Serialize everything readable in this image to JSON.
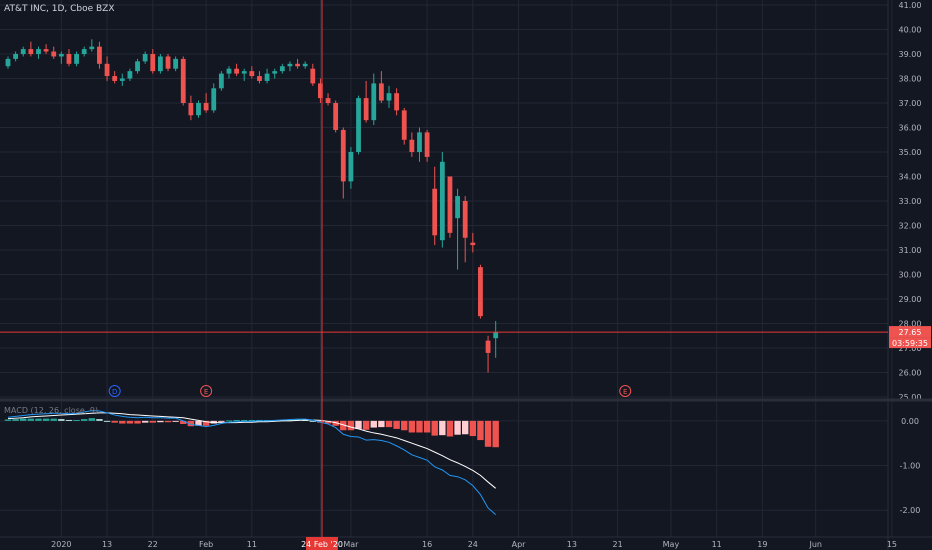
{
  "header": {
    "symbol_line": "AT&T INC, 1D, Cboe BZX"
  },
  "macd": {
    "label": "MACD (12, 26, close, 9)"
  },
  "colors": {
    "bg": "#131722",
    "grid": "#232734",
    "up": "#26a69a",
    "down": "#ef5350",
    "macd_line": "#2196f3",
    "signal_line": "#ffffff",
    "crosshair": "#e53935",
    "axis_text": "#b2b5be",
    "hist_light_up": "#b2dfdb",
    "hist_light_down": "#ffcdd2"
  },
  "crosshair": {
    "date_label": "24 Feb '20",
    "price": 27.65,
    "price_label": "27.65",
    "countdown_label": "03:59:35"
  },
  "chart_data": {
    "type": "candlestick",
    "price_axis": {
      "ticks": [
        "41.00",
        "40.00",
        "39.00",
        "38.00",
        "37.00",
        "36.00",
        "35.00",
        "34.00",
        "33.00",
        "32.00",
        "31.00",
        "30.00",
        "29.00",
        "28.00",
        "27.00",
        "26.00",
        "25.00"
      ],
      "range": [
        25,
        41
      ]
    },
    "macd_axis": {
      "ticks": [
        "0.00",
        "-1.00",
        "-2.00"
      ],
      "range": [
        -2.6,
        0.4
      ]
    },
    "x_ticks": [
      {
        "label": "2020",
        "i": 7
      },
      {
        "label": "13",
        "i": 13
      },
      {
        "label": "22",
        "i": 19
      },
      {
        "label": "Feb",
        "i": 26
      },
      {
        "label": "11",
        "i": 32
      },
      {
        "label": "24 Feb '20",
        "i": 41
      },
      {
        "label": "Mar",
        "i": 45
      },
      {
        "label": "16",
        "i": 55
      },
      {
        "label": "24",
        "i": 61
      },
      {
        "label": "Apr",
        "i": 67
      },
      {
        "label": "13",
        "i": 74
      },
      {
        "label": "21",
        "i": 80
      },
      {
        "label": "May",
        "i": 87
      },
      {
        "label": "11",
        "i": 93
      },
      {
        "label": "19",
        "i": 99
      },
      {
        "label": "Jun",
        "i": 106
      },
      {
        "label": "15",
        "i": 116
      }
    ],
    "events": [
      {
        "label": "D",
        "i": 14,
        "color": "#2962ff"
      },
      {
        "label": "E",
        "i": 26,
        "color": "#ef5350"
      },
      {
        "label": "E",
        "i": 81,
        "color": "#ef5350"
      }
    ],
    "candles": [
      {
        "o": 38.5,
        "h": 38.9,
        "l": 38.4,
        "c": 38.8
      },
      {
        "o": 38.8,
        "h": 39.1,
        "l": 38.7,
        "c": 39.0
      },
      {
        "o": 39.0,
        "h": 39.3,
        "l": 38.9,
        "c": 39.2
      },
      {
        "o": 39.2,
        "h": 39.5,
        "l": 38.9,
        "c": 39.0
      },
      {
        "o": 39.0,
        "h": 39.3,
        "l": 38.8,
        "c": 39.2
      },
      {
        "o": 39.2,
        "h": 39.4,
        "l": 39.0,
        "c": 39.1
      },
      {
        "o": 39.1,
        "h": 39.3,
        "l": 38.8,
        "c": 38.9
      },
      {
        "o": 38.9,
        "h": 39.1,
        "l": 38.6,
        "c": 39.0
      },
      {
        "o": 39.0,
        "h": 39.2,
        "l": 38.5,
        "c": 38.6
      },
      {
        "o": 38.6,
        "h": 39.1,
        "l": 38.5,
        "c": 39.0
      },
      {
        "o": 39.0,
        "h": 39.3,
        "l": 38.9,
        "c": 39.2
      },
      {
        "o": 39.2,
        "h": 39.6,
        "l": 39.1,
        "c": 39.3
      },
      {
        "o": 39.3,
        "h": 39.5,
        "l": 38.4,
        "c": 38.6
      },
      {
        "o": 38.6,
        "h": 38.9,
        "l": 37.9,
        "c": 38.1
      },
      {
        "o": 38.1,
        "h": 38.3,
        "l": 37.8,
        "c": 37.9
      },
      {
        "o": 37.9,
        "h": 38.2,
        "l": 37.7,
        "c": 38.0
      },
      {
        "o": 38.0,
        "h": 38.4,
        "l": 37.9,
        "c": 38.3
      },
      {
        "o": 38.3,
        "h": 38.8,
        "l": 38.2,
        "c": 38.7
      },
      {
        "o": 38.7,
        "h": 39.1,
        "l": 38.6,
        "c": 39.0
      },
      {
        "o": 39.0,
        "h": 39.2,
        "l": 38.2,
        "c": 38.3
      },
      {
        "o": 38.3,
        "h": 39.0,
        "l": 38.2,
        "c": 38.9
      },
      {
        "o": 38.9,
        "h": 39.0,
        "l": 38.3,
        "c": 38.4
      },
      {
        "o": 38.4,
        "h": 38.9,
        "l": 38.3,
        "c": 38.8
      },
      {
        "o": 38.8,
        "h": 38.9,
        "l": 36.9,
        "c": 37.0
      },
      {
        "o": 37.0,
        "h": 37.3,
        "l": 36.3,
        "c": 36.5
      },
      {
        "o": 36.5,
        "h": 37.1,
        "l": 36.4,
        "c": 37.0
      },
      {
        "o": 37.0,
        "h": 37.4,
        "l": 36.6,
        "c": 36.7
      },
      {
        "o": 36.7,
        "h": 37.8,
        "l": 36.6,
        "c": 37.6
      },
      {
        "o": 37.6,
        "h": 38.3,
        "l": 37.5,
        "c": 38.2
      },
      {
        "o": 38.2,
        "h": 38.5,
        "l": 38.0,
        "c": 38.4
      },
      {
        "o": 38.4,
        "h": 38.6,
        "l": 38.1,
        "c": 38.2
      },
      {
        "o": 38.2,
        "h": 38.4,
        "l": 37.9,
        "c": 38.3
      },
      {
        "o": 38.3,
        "h": 38.5,
        "l": 38.0,
        "c": 38.1
      },
      {
        "o": 38.1,
        "h": 38.3,
        "l": 37.8,
        "c": 37.9
      },
      {
        "o": 37.9,
        "h": 38.4,
        "l": 37.8,
        "c": 38.2
      },
      {
        "o": 38.2,
        "h": 38.4,
        "l": 38.0,
        "c": 38.3
      },
      {
        "o": 38.3,
        "h": 38.6,
        "l": 38.2,
        "c": 38.5
      },
      {
        "o": 38.5,
        "h": 38.7,
        "l": 38.3,
        "c": 38.6
      },
      {
        "o": 38.6,
        "h": 38.8,
        "l": 38.4,
        "c": 38.5
      },
      {
        "o": 38.5,
        "h": 38.7,
        "l": 38.4,
        "c": 38.6
      },
      {
        "o": 38.4,
        "h": 38.6,
        "l": 37.7,
        "c": 37.8
      },
      {
        "o": 37.8,
        "h": 38.0,
        "l": 37.0,
        "c": 37.2
      },
      {
        "o": 37.2,
        "h": 37.4,
        "l": 36.9,
        "c": 37.0
      },
      {
        "o": 37.0,
        "h": 37.1,
        "l": 35.8,
        "c": 35.9
      },
      {
        "o": 35.9,
        "h": 36.0,
        "l": 33.1,
        "c": 33.8
      },
      {
        "o": 33.8,
        "h": 35.2,
        "l": 33.5,
        "c": 35.0
      },
      {
        "o": 35.0,
        "h": 37.3,
        "l": 34.9,
        "c": 37.2
      },
      {
        "o": 37.2,
        "h": 37.9,
        "l": 36.2,
        "c": 36.3
      },
      {
        "o": 36.3,
        "h": 38.2,
        "l": 36.1,
        "c": 37.8
      },
      {
        "o": 37.8,
        "h": 38.3,
        "l": 37.0,
        "c": 37.1
      },
      {
        "o": 37.1,
        "h": 37.7,
        "l": 36.8,
        "c": 37.4
      },
      {
        "o": 37.4,
        "h": 37.6,
        "l": 36.5,
        "c": 36.7
      },
      {
        "o": 36.7,
        "h": 36.8,
        "l": 35.3,
        "c": 35.5
      },
      {
        "o": 35.5,
        "h": 35.8,
        "l": 34.8,
        "c": 35.0
      },
      {
        "o": 35.0,
        "h": 36.0,
        "l": 34.6,
        "c": 35.8
      },
      {
        "o": 35.8,
        "h": 35.9,
        "l": 34.6,
        "c": 34.8
      },
      {
        "o": 33.5,
        "h": 34.4,
        "l": 31.2,
        "c": 31.6
      },
      {
        "o": 31.4,
        "h": 35.0,
        "l": 31.1,
        "c": 34.6
      },
      {
        "o": 34.0,
        "h": 34.0,
        "l": 31.5,
        "c": 31.7
      },
      {
        "o": 32.3,
        "h": 33.5,
        "l": 30.2,
        "c": 33.2
      },
      {
        "o": 33.0,
        "h": 33.2,
        "l": 30.5,
        "c": 31.5
      },
      {
        "o": 31.3,
        "h": 31.7,
        "l": 30.9,
        "c": 31.2
      },
      {
        "o": 30.3,
        "h": 30.4,
        "l": 28.2,
        "c": 28.3
      },
      {
        "o": 27.3,
        "h": 27.5,
        "l": 26.0,
        "c": 26.8
      },
      {
        "o": 27.4,
        "h": 28.1,
        "l": 26.6,
        "c": 27.65
      }
    ],
    "macd_series": {
      "macd": [
        0.08,
        0.1,
        0.12,
        0.14,
        0.15,
        0.16,
        0.17,
        0.17,
        0.16,
        0.17,
        0.2,
        0.23,
        0.22,
        0.18,
        0.13,
        0.1,
        0.08,
        0.07,
        0.08,
        0.07,
        0.07,
        0.06,
        0.06,
        0.0,
        -0.08,
        -0.1,
        -0.13,
        -0.1,
        -0.06,
        -0.03,
        -0.02,
        -0.01,
        -0.01,
        0.0,
        0.0,
        0.01,
        0.02,
        0.03,
        0.04,
        0.04,
        0.02,
        -0.03,
        -0.07,
        -0.15,
        -0.3,
        -0.35,
        -0.36,
        -0.43,
        -0.42,
        -0.44,
        -0.48,
        -0.56,
        -0.65,
        -0.76,
        -0.82,
        -0.88,
        -1.03,
        -1.1,
        -1.22,
        -1.25,
        -1.32,
        -1.45,
        -1.65,
        -1.95,
        -2.1
      ],
      "signal": [
        0.05,
        0.06,
        0.07,
        0.09,
        0.1,
        0.11,
        0.12,
        0.13,
        0.14,
        0.15,
        0.16,
        0.17,
        0.18,
        0.18,
        0.17,
        0.16,
        0.14,
        0.13,
        0.12,
        0.11,
        0.1,
        0.09,
        0.08,
        0.07,
        0.04,
        0.01,
        -0.02,
        -0.04,
        -0.04,
        -0.04,
        -0.04,
        -0.03,
        -0.03,
        -0.02,
        -0.02,
        -0.01,
        0.0,
        0.0,
        0.01,
        0.02,
        0.02,
        0.01,
        -0.01,
        -0.04,
        -0.09,
        -0.14,
        -0.18,
        -0.23,
        -0.27,
        -0.3,
        -0.34,
        -0.38,
        -0.44,
        -0.5,
        -0.56,
        -0.62,
        -0.7,
        -0.78,
        -0.87,
        -0.94,
        -1.02,
        -1.11,
        -1.22,
        -1.37,
        -1.51
      ],
      "hist": [
        0.03,
        0.04,
        0.05,
        0.05,
        0.05,
        0.05,
        0.05,
        0.04,
        0.02,
        0.02,
        0.04,
        0.06,
        0.04,
        0.0,
        -0.04,
        -0.06,
        -0.06,
        -0.06,
        -0.04,
        -0.04,
        -0.03,
        -0.03,
        -0.02,
        -0.07,
        -0.12,
        -0.11,
        -0.11,
        -0.06,
        -0.02,
        0.01,
        0.02,
        0.02,
        0.02,
        0.02,
        0.02,
        0.02,
        0.02,
        0.03,
        0.03,
        0.02,
        0.0,
        -0.04,
        -0.06,
        -0.11,
        -0.21,
        -0.21,
        -0.18,
        -0.2,
        -0.15,
        -0.14,
        -0.14,
        -0.18,
        -0.21,
        -0.26,
        -0.26,
        -0.26,
        -0.33,
        -0.32,
        -0.35,
        -0.31,
        -0.3,
        -0.34,
        -0.43,
        -0.58,
        -0.59
      ]
    }
  }
}
